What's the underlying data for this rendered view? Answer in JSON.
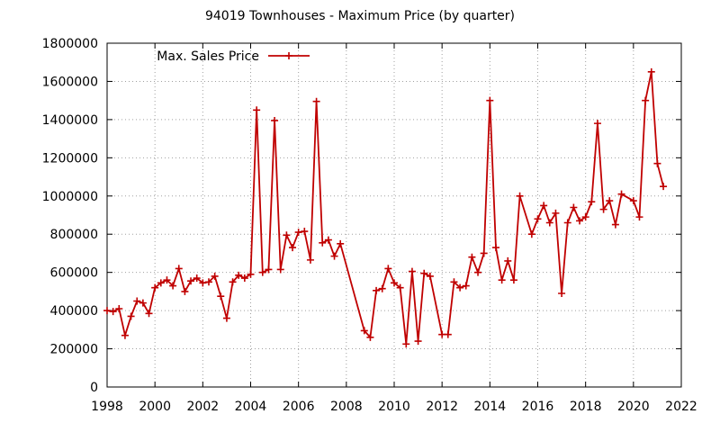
{
  "chart_data": {
    "type": "line",
    "title": "94019 Townhouses - Maximum Price (by quarter)",
    "xlabel": "",
    "ylabel": "",
    "xlim": [
      1998,
      2022
    ],
    "ylim": [
      0,
      1800000
    ],
    "xticks": [
      "1998",
      "2000",
      "2002",
      "2004",
      "2006",
      "2008",
      "2010",
      "2012",
      "2014",
      "2016",
      "2018",
      "2020",
      "2022"
    ],
    "yticks": [
      "0",
      "200000",
      "400000",
      "600000",
      "800000",
      "1000000",
      "1200000",
      "1400000",
      "1600000",
      "1800000"
    ],
    "grid": true,
    "legend_position": "top-left",
    "series": [
      {
        "name": "Max. Sales Price",
        "color": "#c00000",
        "marker": "plus",
        "x": [
          1998.0,
          1998.25,
          1998.5,
          1998.75,
          1999.0,
          1999.25,
          1999.5,
          1999.75,
          2000.0,
          2000.25,
          2000.5,
          2000.75,
          2001.0,
          2001.25,
          2001.5,
          2001.75,
          2002.0,
          2002.25,
          2002.5,
          2002.75,
          2003.0,
          2003.25,
          2003.5,
          2003.75,
          2004.0,
          2004.25,
          2004.5,
          2004.75,
          2005.0,
          2005.25,
          2005.5,
          2005.75,
          2006.0,
          2006.25,
          2006.5,
          2006.75,
          2007.0,
          2007.25,
          2007.5,
          2007.75,
          2008.75,
          2009.0,
          2009.25,
          2009.5,
          2009.75,
          2010.0,
          2010.25,
          2010.5,
          2010.75,
          2011.0,
          2011.25,
          2011.5,
          2012.0,
          2012.25,
          2012.5,
          2012.75,
          2013.0,
          2013.25,
          2013.5,
          2013.75,
          2014.0,
          2014.25,
          2014.5,
          2014.75,
          2015.0,
          2015.25,
          2015.75,
          2016.0,
          2016.25,
          2016.5,
          2016.75,
          2017.0,
          2017.25,
          2017.5,
          2017.75,
          2018.0,
          2018.25,
          2018.5,
          2018.75,
          2019.0,
          2019.25,
          2019.5,
          2020.0,
          2020.25,
          2020.5,
          2020.75,
          2021.0,
          2021.25
        ],
        "values": [
          400000,
          395000,
          410000,
          270000,
          370000,
          450000,
          440000,
          385000,
          520000,
          545000,
          560000,
          530000,
          620000,
          500000,
          555000,
          570000,
          545000,
          550000,
          580000,
          475000,
          360000,
          550000,
          585000,
          570000,
          590000,
          1450000,
          600000,
          615000,
          1395000,
          615000,
          795000,
          730000,
          810000,
          815000,
          665000,
          1495000,
          755000,
          770000,
          685000,
          750000,
          295000,
          260000,
          505000,
          515000,
          620000,
          545000,
          520000,
          225000,
          605000,
          240000,
          595000,
          580000,
          275000,
          275000,
          550000,
          520000,
          530000,
          680000,
          600000,
          700000,
          1500000,
          730000,
          560000,
          660000,
          560000,
          1000000,
          800000,
          880000,
          950000,
          860000,
          910000,
          490000,
          860000,
          940000,
          870000,
          890000,
          970000,
          1380000,
          930000,
          975000,
          850000,
          1010000,
          975000,
          890000,
          1500000,
          1650000,
          1170000,
          1050000
        ]
      }
    ]
  }
}
